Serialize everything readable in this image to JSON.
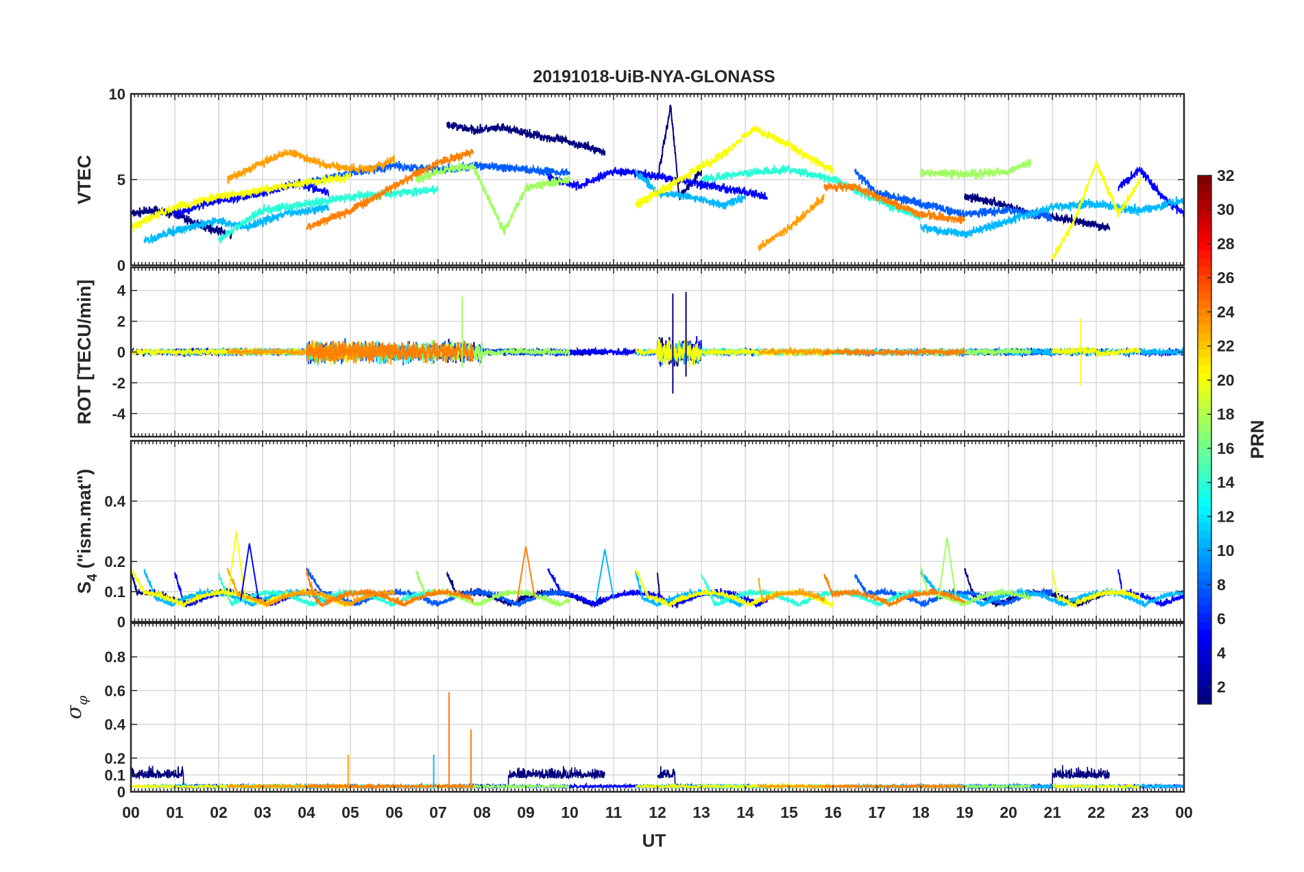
{
  "chart_data": {
    "type": "line",
    "title": "20191018-UiB-NYA-GLONASS",
    "xlabel": "UT",
    "x_tick_labels": [
      "00",
      "01",
      "02",
      "03",
      "04",
      "05",
      "06",
      "07",
      "08",
      "09",
      "10",
      "11",
      "12",
      "13",
      "14",
      "15",
      "16",
      "17",
      "18",
      "19",
      "20",
      "21",
      "22",
      "23",
      "00"
    ],
    "xlim": [
      0,
      24
    ],
    "grid": true,
    "panels": [
      {
        "id": "vtec",
        "ylabel": "VTEC",
        "ylim": [
          0,
          10
        ],
        "yticks": [
          0,
          5,
          10
        ],
        "yticklabels": [
          "0",
          "5",
          "10"
        ],
        "value_range": [
          0,
          9.4
        ]
      },
      {
        "id": "rot",
        "ylabel": "ROT [TECU/min]",
        "ylim": [
          -5.5,
          5.5
        ],
        "yticks": [
          -4,
          -2,
          0,
          2,
          4
        ],
        "yticklabels": [
          "-4",
          "-2",
          "0",
          "2",
          "4"
        ],
        "value_range": [
          -2.7,
          3.9
        ]
      },
      {
        "id": "s4",
        "ylabel": "S4 (\"ism.mat\")",
        "ylabel_base": "S",
        "ylabel_sub": "4",
        "ylabel_rest": " (\"ism.mat\")",
        "ylim": [
          0,
          0.6
        ],
        "yticks": [
          0,
          0.1,
          0.2,
          0.4
        ],
        "yticklabels": [
          "0",
          "0.1",
          "0.2",
          "0.4"
        ],
        "value_range": [
          0.03,
          0.3
        ]
      },
      {
        "id": "sigma",
        "ylabel": "σφ",
        "ylabel_base": "σ",
        "ylabel_sub": "φ",
        "ylim": [
          0,
          1
        ],
        "yticks": [
          0,
          0.1,
          0.2,
          0.4,
          0.6,
          0.8
        ],
        "yticklabels": [
          "0",
          "0.1",
          "0.2",
          "0.4",
          "0.6",
          "0.8"
        ],
        "value_range": [
          0,
          0.59
        ]
      }
    ],
    "colorbar": {
      "label": "PRN",
      "range": [
        1,
        32
      ],
      "ticks": [
        2,
        4,
        6,
        8,
        10,
        12,
        14,
        16,
        18,
        20,
        22,
        24,
        26,
        28,
        30,
        32
      ],
      "tick_labels": [
        "2",
        "4",
        "6",
        "8",
        "10",
        "12",
        "14",
        "16",
        "18",
        "20",
        "22",
        "24",
        "26",
        "28",
        "30",
        "32"
      ],
      "colormap": "jet"
    },
    "series": [
      {
        "prn": 1,
        "color": "#00007f",
        "segments": [
          {
            "x": [
              0,
              0.5,
              1.0,
              1.5,
              2.0,
              2.3
            ],
            "vtec": [
              3.0,
              3.2,
              3.0,
              2.4,
              2.0,
              1.8
            ]
          },
          {
            "x": [
              7.2,
              7.8,
              8.5,
              9.2,
              10.0,
              10.8
            ],
            "vtec": [
              8.2,
              7.9,
              8.0,
              7.6,
              7.2,
              6.6
            ]
          },
          {
            "x": [
              12.0,
              12.3,
              12.5,
              13.0
            ],
            "vtec": [
              5.0,
              9.3,
              4.0,
              5.5
            ]
          },
          {
            "x": [
              19.0,
              19.8,
              20.5,
              21.5,
              22.3
            ],
            "vtec": [
              4.0,
              3.6,
              3.0,
              2.6,
              2.2
            ]
          }
        ]
      },
      {
        "prn": 4,
        "color": "#0000ff",
        "segments": [
          {
            "x": [
              1.0,
              2.0,
              3.0,
              3.8,
              4.5
            ],
            "vtec": [
              3.0,
              3.8,
              4.2,
              4.8,
              4.2
            ]
          },
          {
            "x": [
              9.5,
              10.2,
              11.0,
              12.0,
              13.5,
              14.5
            ],
            "vtec": [
              5.2,
              4.6,
              5.5,
              5.2,
              4.5,
              4.0
            ]
          },
          {
            "x": [
              22.5,
              23.0,
              23.5,
              24.0
            ],
            "vtec": [
              4.5,
              5.6,
              4.0,
              3.0
            ]
          }
        ]
      },
      {
        "prn": 7,
        "color": "#005cff",
        "segments": [
          {
            "x": [
              4.0,
              5.0,
              6.0,
              7.0,
              8.0,
              9.0,
              10.0
            ],
            "vtec": [
              4.8,
              5.4,
              5.8,
              5.6,
              5.8,
              5.6,
              5.4
            ]
          },
          {
            "x": [
              16.5,
              17.0,
              18.0,
              19.0,
              20.0,
              21.0
            ],
            "vtec": [
              5.5,
              4.2,
              3.6,
              3.0,
              3.2,
              2.8
            ]
          }
        ]
      },
      {
        "prn": 11,
        "color": "#00b8ff",
        "segments": [
          {
            "x": [
              0.3,
              1.0,
              2.0,
              2.6,
              3.5,
              4.5
            ],
            "vtec": [
              1.4,
              2.0,
              2.6,
              2.2,
              3.0,
              3.4
            ]
          },
          {
            "x": [
              11.5,
              12.0,
              12.8,
              13.5,
              14.0
            ],
            "vtec": [
              5.5,
              4.2,
              4.0,
              3.5,
              4.0
            ]
          },
          {
            "x": [
              18.0,
              19.0,
              20.0,
              21.0,
              22.0,
              23.0,
              24.0
            ],
            "vtec": [
              2.2,
              1.8,
              2.6,
              3.4,
              3.6,
              3.2,
              3.8
            ]
          }
        ]
      },
      {
        "prn": 15,
        "color": "#27ffd7",
        "segments": [
          {
            "x": [
              2.0,
              3.0,
              4.0,
              5.0,
              6.0,
              7.0
            ],
            "vtec": [
              1.5,
              3.2,
              3.6,
              4.0,
              4.2,
              4.4
            ]
          },
          {
            "x": [
              13.0,
              14.0,
              15.0,
              16.0,
              17.0,
              18.0
            ],
            "vtec": [
              5.0,
              5.4,
              5.6,
              5.0,
              3.8,
              2.8
            ]
          }
        ]
      },
      {
        "prn": 18,
        "color": "#9fff5f",
        "segments": [
          {
            "x": [
              6.5,
              7.2,
              7.8,
              8.5,
              9.0,
              10.0
            ],
            "vtec": [
              5.0,
              5.6,
              5.8,
              2.0,
              4.5,
              5.0
            ]
          },
          {
            "x": [
              18.0,
              19.0,
              20.0,
              20.5
            ],
            "vtec": [
              5.4,
              5.3,
              5.5,
              6.0
            ]
          }
        ]
      },
      {
        "prn": 20,
        "color": "#f7ff07",
        "segments": [
          {
            "x": [
              0,
              1.0,
              2.0,
              3.0,
              4.0,
              5.0
            ],
            "vtec": [
              2.2,
              3.4,
              4.0,
              4.4,
              4.8,
              5.2
            ]
          },
          {
            "x": [
              11.5,
              12.5,
              13.5,
              14.2,
              15.0,
              16.0
            ],
            "vtec": [
              3.5,
              5.0,
              6.5,
              8.0,
              7.0,
              5.5
            ]
          },
          {
            "x": [
              21.0,
              21.5,
              22.0,
              22.5,
              23.0
            ],
            "vtec": [
              0.4,
              2.6,
              6.0,
              3.0,
              5.0
            ]
          }
        ]
      },
      {
        "prn": 23,
        "color": "#ff9f00",
        "segments": [
          {
            "x": [
              2.2,
              3.0,
              3.6,
              4.5,
              5.5,
              6.0
            ],
            "vtec": [
              5.0,
              6.0,
              6.6,
              5.8,
              5.6,
              6.2
            ]
          },
          {
            "x": [
              14.3,
              15.0,
              15.8
            ],
            "vtec": [
              1.0,
              2.2,
              4.0
            ]
          }
        ]
      },
      {
        "prn": 24,
        "color": "#ff7f00",
        "segments": [
          {
            "x": [
              4.0,
              5.0,
              6.0,
              7.0,
              7.8
            ],
            "vtec": [
              2.2,
              3.2,
              4.6,
              6.0,
              6.6
            ]
          },
          {
            "x": [
              15.8,
              16.5,
              17.0,
              18.0,
              19.0
            ],
            "vtec": [
              4.6,
              4.6,
              4.0,
              3.0,
              2.6
            ]
          }
        ]
      }
    ]
  }
}
